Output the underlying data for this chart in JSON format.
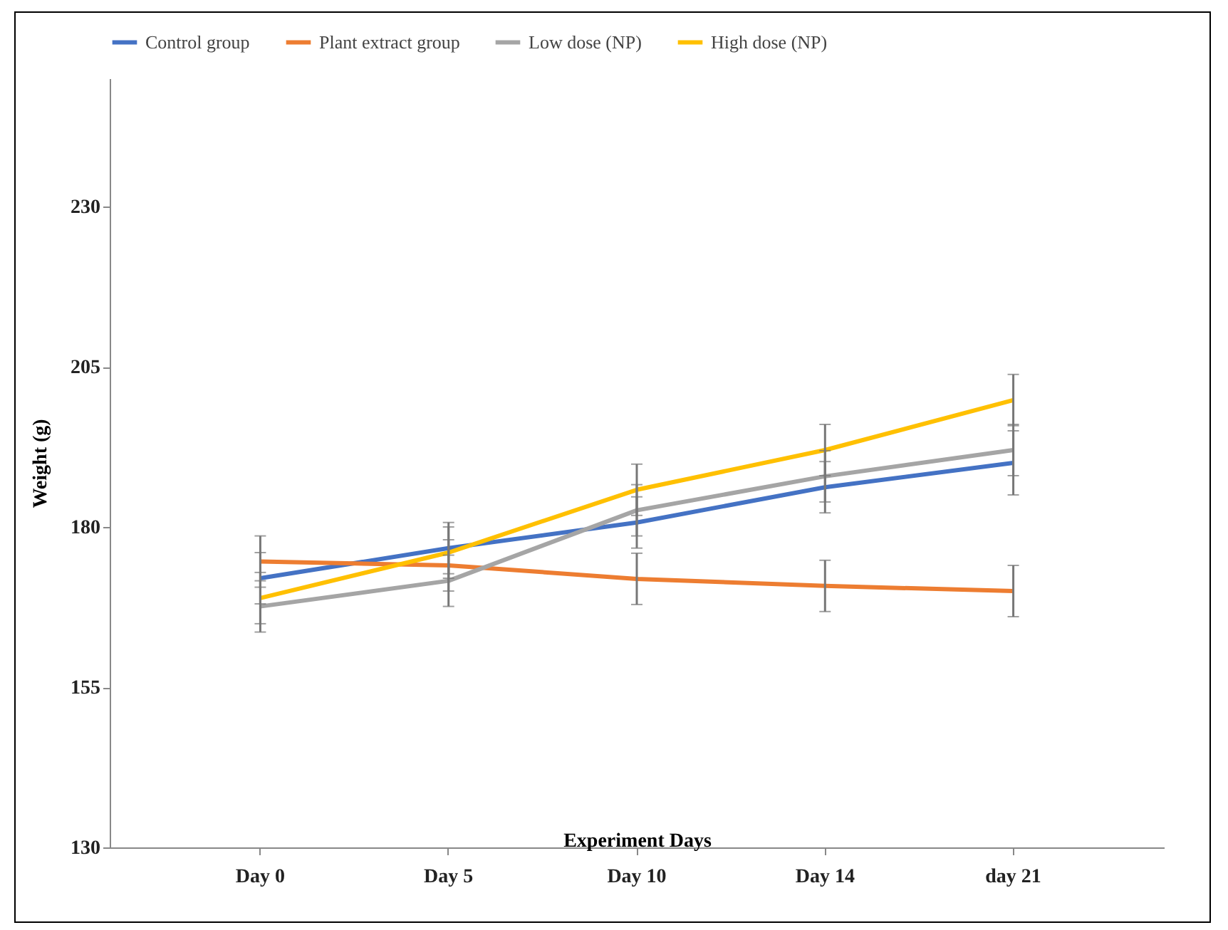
{
  "chart_data": {
    "type": "line",
    "xlabel": "Experiment Days",
    "ylabel": "Weight  (g)",
    "categories": [
      "Day 0",
      "Day 5",
      "Day 10",
      "Day 14",
      "day 21"
    ],
    "ylim": [
      130,
      250
    ],
    "yticks": [
      130,
      155,
      180,
      205,
      230
    ],
    "grid": false,
    "legend": "top",
    "marker": "none",
    "line_style": "solid",
    "series": [
      {
        "name": "Control group",
        "color": "#4472c4",
        "values": [
          172,
          176.7,
          180.7,
          186.2,
          190
        ],
        "errors": [
          4,
          4,
          4,
          4,
          5
        ]
      },
      {
        "name": "Plant extract group",
        "color": "#ed7d31",
        "values": [
          174.6,
          174,
          171.9,
          170.8,
          170
        ],
        "errors": [
          4,
          4,
          4,
          4,
          4
        ]
      },
      {
        "name": "Low dose (NP)",
        "color": "#a5a5a5",
        "values": [
          167.6,
          171.6,
          182.6,
          187.9,
          192
        ],
        "errors": [
          4,
          4,
          4,
          4,
          4
        ]
      },
      {
        "name": "High dose (NP)",
        "color": "#ffc000",
        "values": [
          168.9,
          176,
          185.8,
          192,
          199.8
        ],
        "errors": [
          4,
          4,
          4,
          4,
          4
        ]
      }
    ]
  }
}
